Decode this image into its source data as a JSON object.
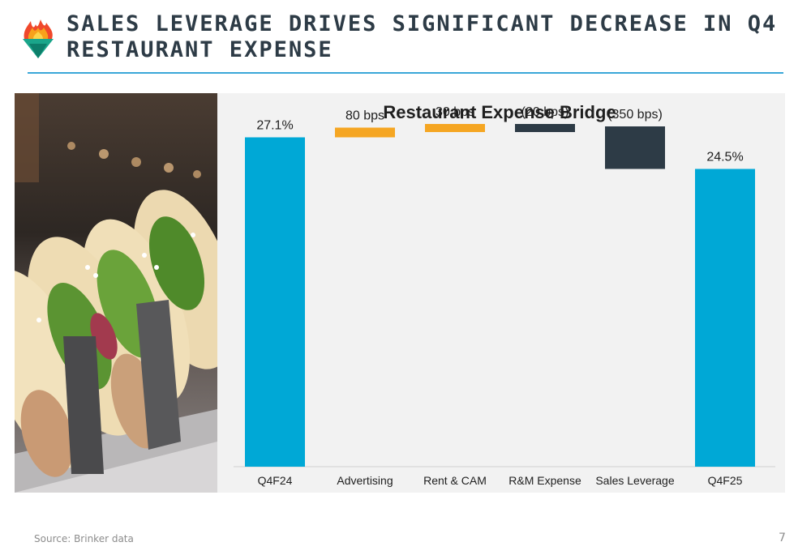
{
  "slide": {
    "title": "SALES LEVERAGE DRIVES SIGNIFICANT DECREASE IN Q4 RESTAURANT EXPENSE",
    "source": "Source:  Brinker data",
    "page_number": "7"
  },
  "colors": {
    "title_rule": "#3aa7d8",
    "increase": "#f5a623",
    "decrease": "#2d3b46",
    "total": "#00a8d6"
  },
  "chart_data": {
    "type": "bar",
    "subtype": "waterfall",
    "title": "Restaurant Expense Bridge",
    "xlabel": "",
    "ylabel": "",
    "ylim": [
      0,
      29.5
    ],
    "grid": false,
    "categories": [
      "Q4F24",
      "Advertising",
      "Rent & CAM",
      "R&M Expense",
      "Sales Leverage",
      "Q4F25"
    ],
    "bars": [
      {
        "category": "Q4F24",
        "kind": "total",
        "start": 0,
        "end": 27.1,
        "label": "27.1%"
      },
      {
        "category": "Advertising",
        "kind": "increase",
        "start": 27.1,
        "end": 27.9,
        "label": "80 bps"
      },
      {
        "category": "Rent & CAM",
        "kind": "increase",
        "start": 27.9,
        "end": 28.2,
        "label": "30 bps"
      },
      {
        "category": "R&M Expense",
        "kind": "decrease",
        "start": 28.2,
        "end": 28.0,
        "label": "(20 bps)"
      },
      {
        "category": "Sales Leverage",
        "kind": "decrease",
        "start": 28.0,
        "end": 24.5,
        "label": "(350 bps)"
      },
      {
        "category": "Q4F25",
        "kind": "total",
        "start": 0,
        "end": 24.5,
        "label": "24.5%"
      }
    ]
  }
}
